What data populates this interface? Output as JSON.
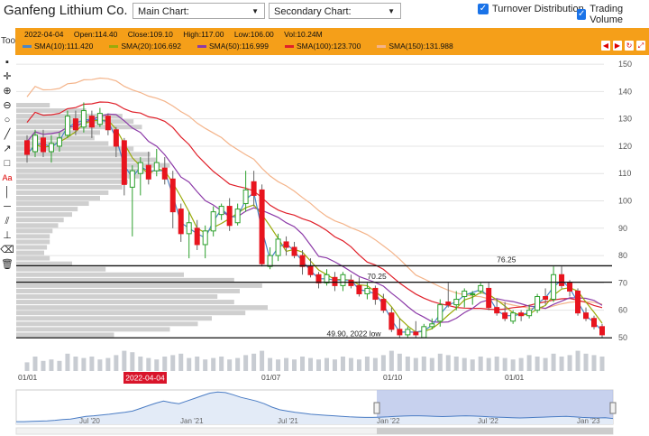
{
  "app": {
    "title": "Ganfeng Lithium Co.",
    "main_chart_label": "Main Chart:",
    "secondary_chart_label": "Secondary Chart:",
    "turnover_label": "Turnover Distribution",
    "trading_volume_label": "Trading Volume",
    "tool_label": "Tool"
  },
  "info": {
    "date": "2022-04-04",
    "open": "Open:114.40",
    "close": "Close:109.10",
    "high": "High:117.00",
    "low": "Low:106.00",
    "vol": "Vol:10.24M",
    "sma10": "SMA(10):111.420",
    "sma20": "SMA(20):106.692",
    "sma50": "SMA(50):116.999",
    "sma100": "SMA(100):123.700",
    "sma150": "SMA(150):131.988"
  },
  "colors": {
    "up": "#2ca02c",
    "down": "#e8141e",
    "sma10": "#4a86c8",
    "sma20": "#9aaa0a",
    "sma50": "#8c3aa8",
    "sma100": "#e0202a",
    "sma150": "#f4b48a",
    "toolbar_bg": "#f59f19"
  },
  "tools": [
    "cursor-icon",
    "crosshair-icon",
    "zoom-in-icon",
    "zoom-out-icon",
    "circle-icon",
    "line-icon",
    "arrow-icon",
    "rectangle-icon",
    "text-icon",
    "vertical-line-icon",
    "horizontal-line-icon",
    "parallel-lines-icon",
    "anchor-icon",
    "eraser-icon",
    "trash-icon"
  ],
  "chart_data": {
    "type": "candlestick",
    "y_ticks": [
      150,
      140,
      130,
      120,
      110,
      100,
      90,
      80,
      70,
      60,
      50
    ],
    "ylim": [
      48,
      153
    ],
    "x_ticks": [
      "01/01",
      "01/07",
      "01/10",
      "01/01"
    ],
    "highlighted_date": "2022-04-04",
    "horizontal_lines": [
      76.25,
      70.25,
      49.9
    ],
    "annotations": [
      {
        "text": "76.25",
        "x": 58,
        "y": 77.5
      },
      {
        "text": "70.25",
        "x": 42,
        "y": 71.5
      },
      {
        "text": "49.90, 2022 low",
        "x": 37,
        "y": 50.5
      }
    ],
    "candles": [
      [
        122,
        117,
        124,
        114
      ],
      [
        118,
        124,
        126,
        116
      ],
      [
        123,
        118,
        126,
        116
      ],
      [
        118,
        121,
        124,
        114
      ],
      [
        120,
        123,
        125,
        118
      ],
      [
        124,
        131,
        133,
        123
      ],
      [
        130,
        126,
        133,
        124
      ],
      [
        127,
        133,
        136,
        125
      ],
      [
        131,
        127,
        133,
        123
      ],
      [
        128,
        132,
        134,
        127
      ],
      [
        131,
        126,
        132,
        124
      ],
      [
        126,
        120,
        127,
        116
      ],
      [
        122,
        106,
        123,
        102
      ],
      [
        105,
        111,
        113,
        87
      ],
      [
        110,
        114,
        116,
        102
      ],
      [
        113,
        108,
        118,
        106
      ],
      [
        111,
        114,
        119,
        109
      ],
      [
        112,
        108,
        116,
        106
      ],
      [
        108,
        96,
        111,
        90
      ],
      [
        97,
        88,
        99,
        85
      ],
      [
        88,
        92,
        96,
        79
      ],
      [
        90,
        84,
        93,
        82
      ],
      [
        84,
        89,
        91,
        79
      ],
      [
        89,
        96,
        98,
        87
      ],
      [
        95,
        98,
        99,
        93
      ],
      [
        98,
        91,
        101,
        89
      ],
      [
        92,
        97,
        99,
        91
      ],
      [
        99,
        104,
        111,
        96
      ],
      [
        107,
        102,
        111,
        98
      ],
      [
        104,
        77,
        106,
        76
      ],
      [
        76,
        80,
        83,
        75
      ],
      [
        80,
        86,
        88,
        78
      ],
      [
        85,
        83,
        87,
        80
      ],
      [
        83,
        80,
        85,
        79
      ],
      [
        80,
        76,
        82,
        73
      ],
      [
        76,
        73,
        79,
        72
      ],
      [
        73,
        70,
        74,
        68
      ],
      [
        70,
        73,
        75,
        69
      ],
      [
        72,
        69,
        74,
        67
      ],
      [
        69,
        73,
        74,
        67
      ],
      [
        71,
        69,
        73,
        68
      ],
      [
        69,
        66,
        72,
        65
      ],
      [
        66,
        68,
        70,
        64
      ],
      [
        68,
        64,
        69,
        62
      ],
      [
        64,
        60,
        66,
        59
      ],
      [
        59,
        53,
        61,
        52
      ],
      [
        53,
        51,
        57,
        50
      ],
      [
        51,
        53,
        54,
        50
      ],
      [
        52,
        51,
        56,
        50
      ],
      [
        50,
        54,
        55,
        50
      ],
      [
        54,
        55,
        57,
        53
      ],
      [
        56,
        62,
        64,
        54
      ],
      [
        63,
        62,
        70,
        61
      ],
      [
        62,
        64,
        67,
        60
      ],
      [
        65,
        67,
        68,
        61
      ],
      [
        66,
        66,
        67,
        62
      ],
      [
        67,
        69,
        70,
        66
      ],
      [
        68,
        61,
        70,
        60
      ],
      [
        61,
        59,
        64,
        58
      ],
      [
        59,
        57,
        63,
        56
      ],
      [
        56,
        59,
        60,
        55
      ],
      [
        59,
        58,
        60,
        56
      ],
      [
        58,
        60,
        62,
        57
      ],
      [
        60,
        65,
        66,
        59
      ],
      [
        65,
        64,
        68,
        62
      ],
      [
        64,
        73,
        76,
        63
      ],
      [
        73,
        69,
        76,
        68
      ],
      [
        70,
        67,
        71,
        65
      ],
      [
        67,
        59,
        68,
        58
      ],
      [
        59,
        57,
        61,
        56
      ],
      [
        57,
        54,
        58,
        53
      ],
      [
        54,
        51,
        55,
        50
      ]
    ],
    "volumes": [
      0.3,
      0.5,
      0.35,
      0.4,
      0.35,
      0.6,
      0.5,
      0.45,
      0.5,
      0.4,
      0.45,
      0.55,
      0.7,
      0.65,
      0.5,
      0.45,
      0.4,
      0.5,
      0.55,
      0.6,
      0.45,
      0.5,
      0.4,
      0.45,
      0.5,
      0.4,
      0.45,
      0.55,
      0.6,
      0.7,
      0.45,
      0.4,
      0.45,
      0.4,
      0.5,
      0.45,
      0.4,
      0.45,
      0.4,
      0.5,
      0.45,
      0.4,
      0.5,
      0.45,
      0.55,
      0.7,
      0.6,
      0.5,
      0.45,
      0.5,
      0.45,
      0.6,
      0.55,
      0.5,
      0.45,
      0.4,
      0.5,
      0.45,
      0.5,
      0.45,
      0.4,
      0.45,
      0.55,
      0.5,
      0.45,
      0.6,
      0.5,
      0.55,
      0.7,
      0.6,
      0.55,
      0.5
    ],
    "turnover_distribution": [
      [
        135,
        0.12
      ],
      [
        133,
        0.25
      ],
      [
        131,
        0.38
      ],
      [
        129,
        0.42
      ],
      [
        127,
        0.45
      ],
      [
        125,
        0.3
      ],
      [
        123,
        0.28
      ],
      [
        121,
        0.33
      ],
      [
        119,
        0.42
      ],
      [
        117,
        0.48
      ],
      [
        115,
        0.5
      ],
      [
        113,
        0.55
      ],
      [
        111,
        0.46
      ],
      [
        109,
        0.44
      ],
      [
        107,
        0.4
      ],
      [
        105,
        0.38
      ],
      [
        103,
        0.33
      ],
      [
        101,
        0.3
      ],
      [
        99,
        0.26
      ],
      [
        97,
        0.22
      ],
      [
        95,
        0.2
      ],
      [
        93,
        0.17
      ],
      [
        91,
        0.15
      ],
      [
        89,
        0.13
      ],
      [
        87,
        0.12
      ],
      [
        85,
        0.12
      ],
      [
        83,
        0.11
      ],
      [
        81,
        0.1
      ],
      [
        79,
        0.12
      ],
      [
        77,
        0.2
      ],
      [
        75,
        0.32
      ],
      [
        73,
        0.6
      ],
      [
        71,
        0.78
      ],
      [
        69,
        0.88
      ],
      [
        67,
        0.8
      ],
      [
        65,
        0.72
      ],
      [
        63,
        0.78
      ],
      [
        61,
        0.9
      ],
      [
        59,
        0.82
      ],
      [
        57,
        0.7
      ],
      [
        55,
        0.65
      ],
      [
        53,
        0.55
      ],
      [
        51,
        0.35
      ]
    ],
    "navigator": {
      "x_labels": [
        "Jul '20",
        "Jan '21",
        "Jul '21",
        "Jan '22",
        "Jul '22",
        "Jan '23"
      ],
      "values": [
        40,
        40,
        41,
        42,
        43,
        45,
        48,
        50,
        55,
        60,
        62,
        65,
        68,
        72,
        75,
        80,
        90,
        100,
        110,
        118,
        112,
        108,
        118,
        128,
        138,
        148,
        152,
        150,
        142,
        132,
        125,
        118,
        108,
        95,
        85,
        80,
        75,
        72,
        68,
        66,
        64,
        62,
        60,
        58,
        57,
        56,
        56,
        57,
        58,
        60,
        61,
        62,
        62,
        61,
        60,
        59,
        60,
        61,
        62,
        61,
        60,
        58,
        57,
        56,
        55,
        54,
        55,
        56,
        57,
        58,
        59,
        60,
        58,
        56,
        55,
        54,
        55,
        52
      ]
    }
  }
}
